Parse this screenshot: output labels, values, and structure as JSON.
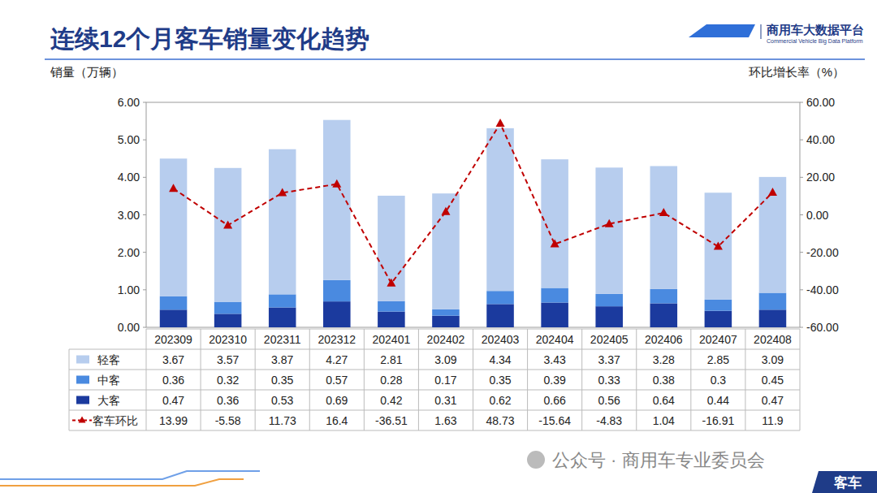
{
  "chart_data": {
    "type": "bar",
    "title": "连续12个月客车销量变化趋势",
    "logo_text": "商用车大数据平台",
    "logo_subtext": "Commercial Vehicle Big Data Platform",
    "y_label": "销量（万辆）",
    "y2_label": "环比增长率（%）",
    "source": "公众号 · 商用车专业委员会",
    "tag": "客车",
    "stacked": true,
    "grid": false,
    "categories": [
      "202309",
      "202310",
      "202311",
      "202312",
      "202401",
      "202402",
      "202403",
      "202404",
      "202405",
      "202406",
      "202407",
      "202408"
    ],
    "series": [
      {
        "name": "轻客",
        "type": "bar",
        "color": "#b7cdee",
        "values": [
          3.67,
          3.57,
          3.87,
          4.27,
          2.81,
          3.09,
          4.34,
          3.43,
          3.37,
          3.28,
          2.85,
          3.09
        ]
      },
      {
        "name": "中客",
        "type": "bar",
        "color": "#4a8ae0",
        "values": [
          0.36,
          0.32,
          0.35,
          0.57,
          0.28,
          0.17,
          0.35,
          0.39,
          0.33,
          0.38,
          0.3,
          0.45
        ]
      },
      {
        "name": "大客",
        "type": "bar",
        "color": "#1b3a9e",
        "values": [
          0.47,
          0.36,
          0.53,
          0.69,
          0.42,
          0.31,
          0.62,
          0.66,
          0.56,
          0.64,
          0.44,
          0.47
        ]
      },
      {
        "name": "客车环比",
        "type": "line",
        "axis": "y2",
        "color": "#c00000",
        "line_style": "dashed",
        "marker": "triangle",
        "values": [
          13.99,
          -5.58,
          11.73,
          16.4,
          -36.51,
          1.63,
          48.73,
          -15.64,
          -4.83,
          1.04,
          -16.91,
          11.9
        ]
      }
    ],
    "ylim": [
      0,
      6
    ],
    "yticks": [
      {
        "value": 0,
        "label": "0.00"
      },
      {
        "value": 1,
        "label": "1.00"
      },
      {
        "value": 2,
        "label": "2.00"
      },
      {
        "value": 3,
        "label": "3.00"
      },
      {
        "value": 4,
        "label": "4.00"
      },
      {
        "value": 5,
        "label": "5.00"
      },
      {
        "value": 6,
        "label": "6.00"
      }
    ],
    "y2lim": [
      -60,
      60
    ],
    "y2ticks": [
      {
        "value": -60,
        "label": "-60.00"
      },
      {
        "value": -40,
        "label": "-40.00"
      },
      {
        "value": -20,
        "label": "-20.00"
      },
      {
        "value": 0,
        "label": "0.00"
      },
      {
        "value": 20,
        "label": "20.00"
      },
      {
        "value": 40,
        "label": "40.00"
      },
      {
        "value": 60,
        "label": "60.00"
      }
    ]
  }
}
